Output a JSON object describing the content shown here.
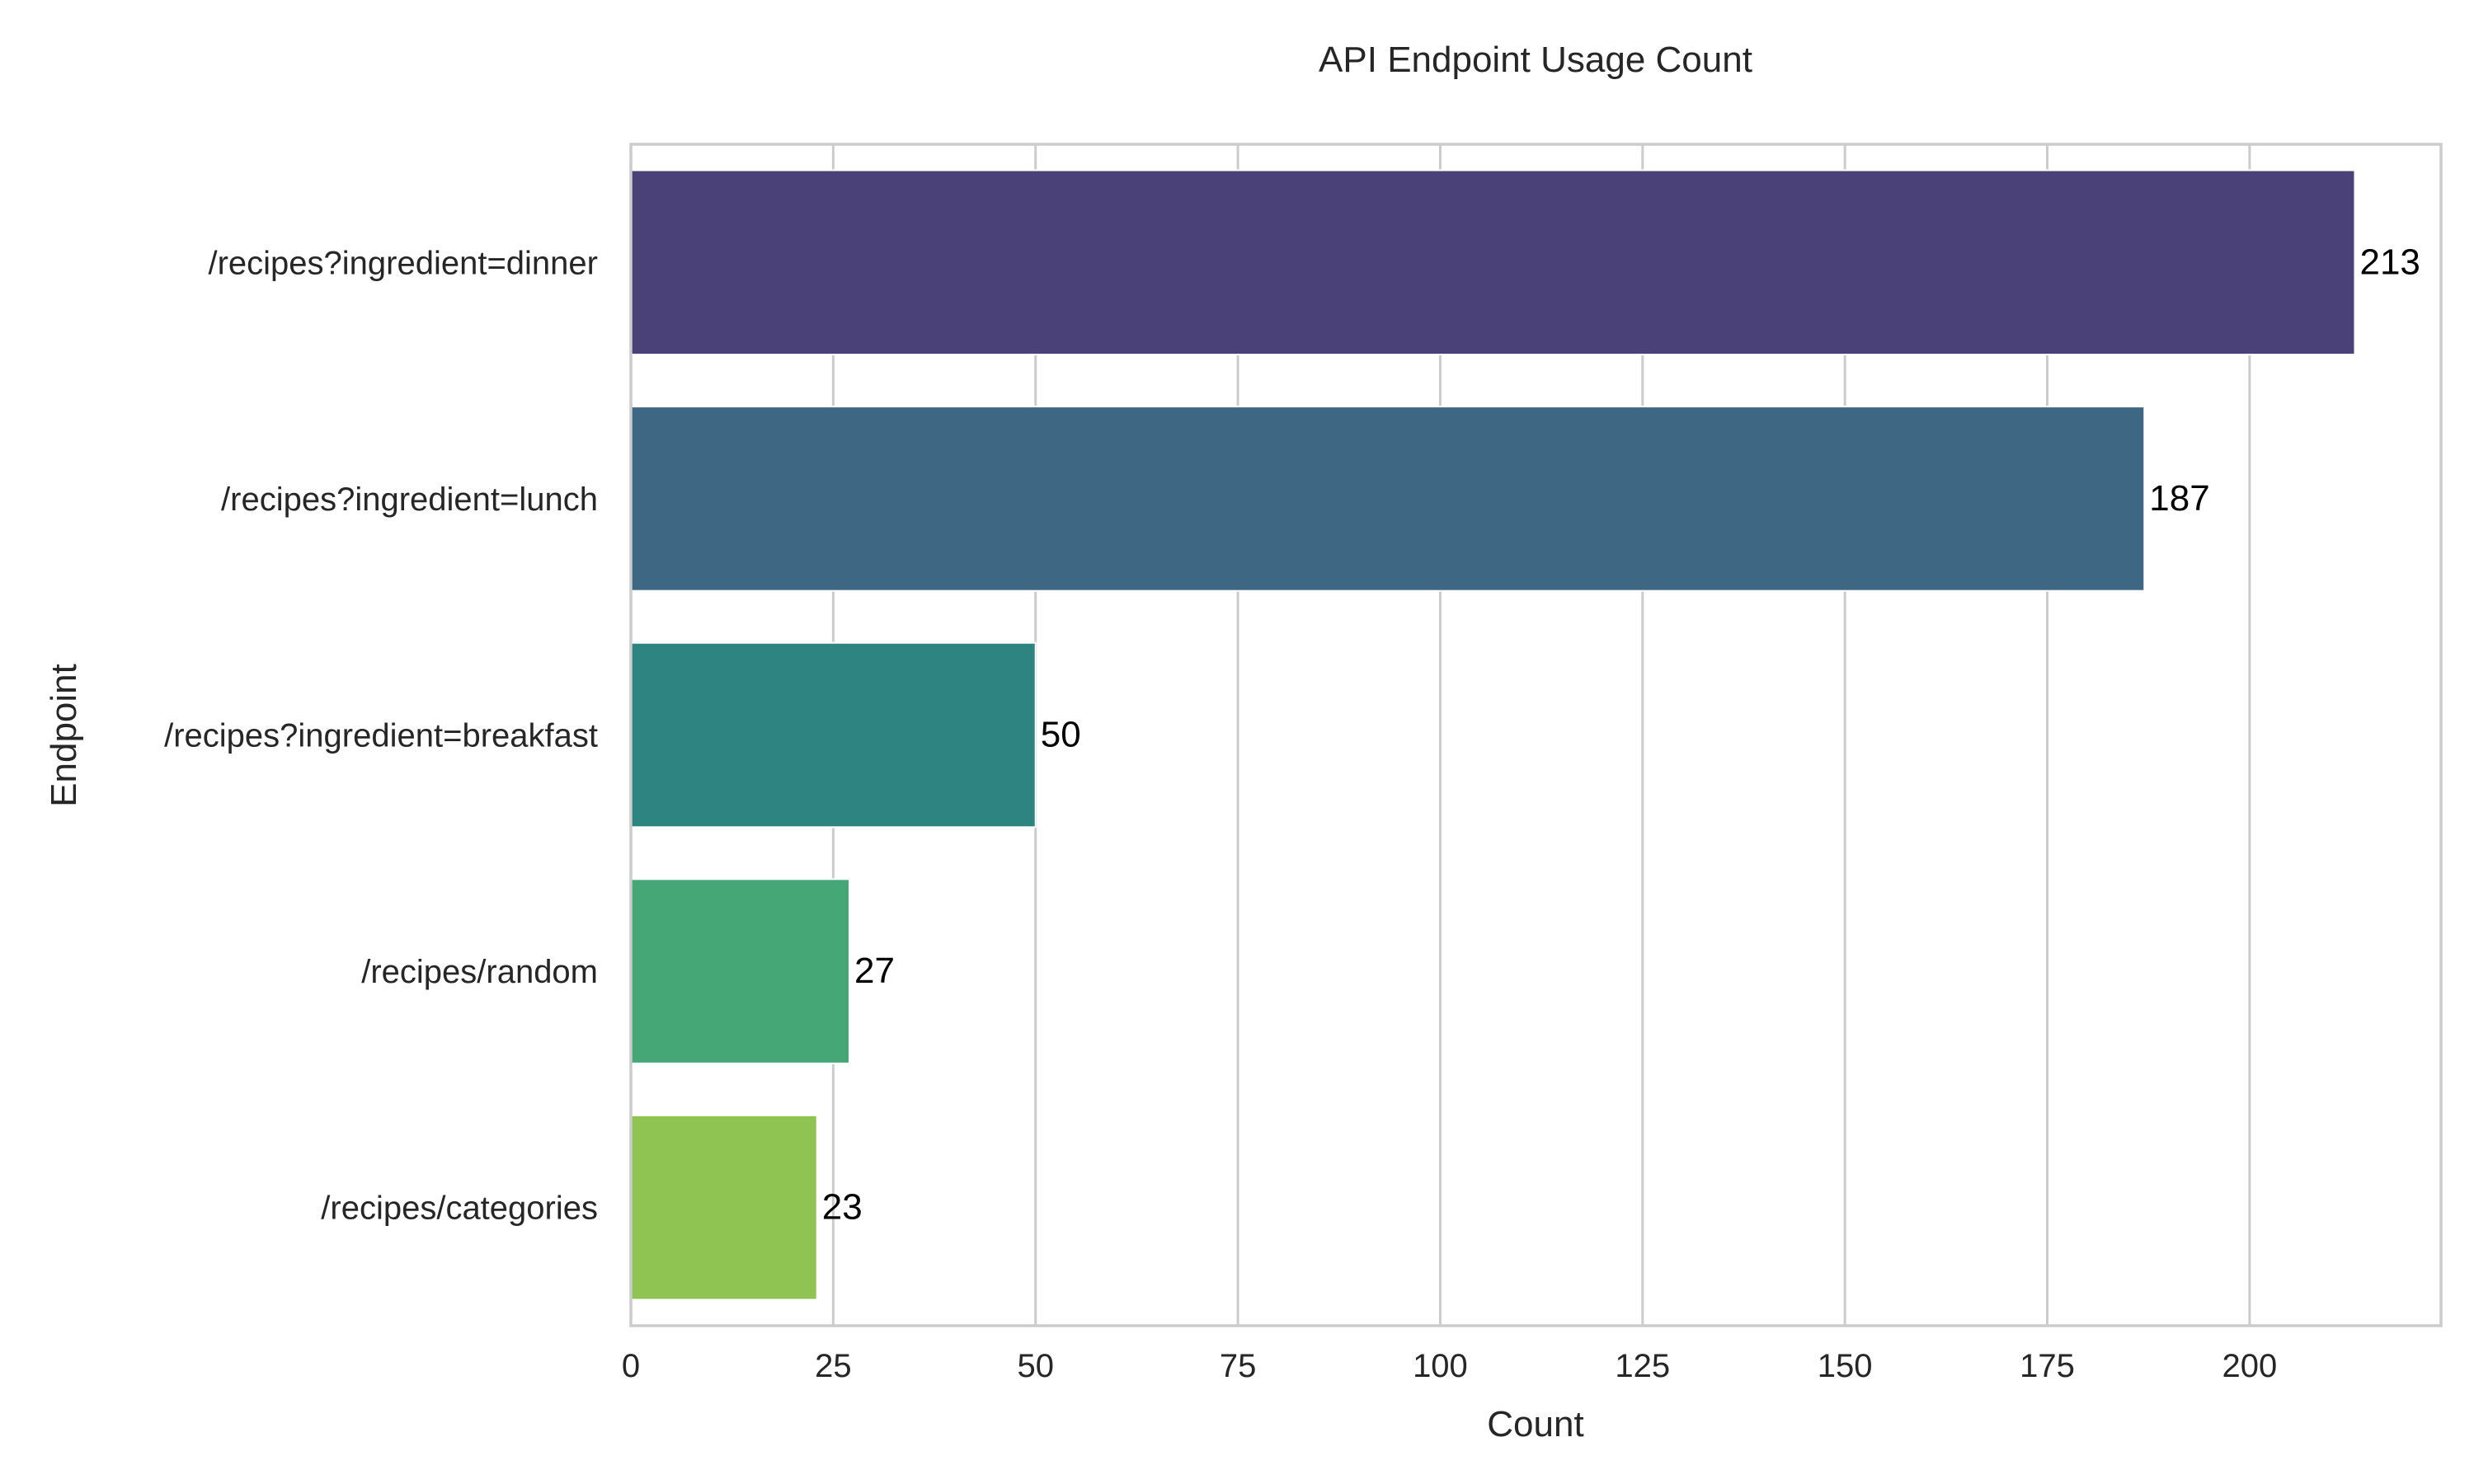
{
  "chart_data": {
    "type": "bar",
    "orientation": "horizontal",
    "title": "API Endpoint Usage Count",
    "xlabel": "Count",
    "ylabel": "Endpoint",
    "categories": [
      "/recipes?ingredient=dinner",
      "/recipes?ingredient=lunch",
      "/recipes?ingredient=breakfast",
      "/recipes/random",
      "/recipes/categories"
    ],
    "values": [
      213,
      187,
      50,
      27,
      23
    ],
    "colors": [
      "#4a4178",
      "#3e6783",
      "#2e8480",
      "#46a776",
      "#8fc453"
    ],
    "xlim": [
      0,
      223.65
    ],
    "xticks": [
      0,
      25,
      50,
      75,
      100,
      125,
      150,
      175,
      200
    ],
    "grid": true,
    "show_data_labels": true
  }
}
